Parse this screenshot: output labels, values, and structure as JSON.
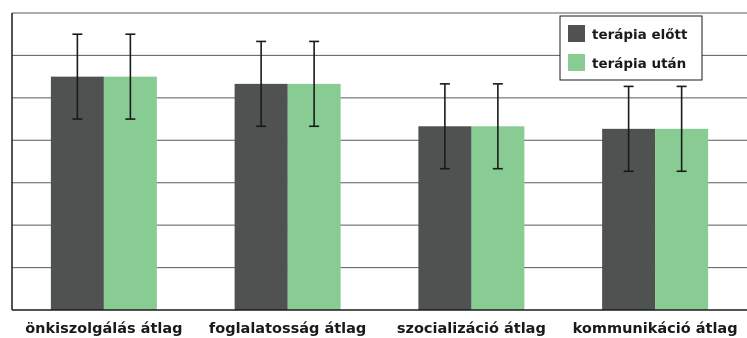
{
  "chart_data": {
    "type": "bar",
    "categories": [
      "önkiszolgálás átlag",
      "foglalatosság átlag",
      "szocializáció átlag",
      "kommunikáció átlag"
    ],
    "series": [
      {
        "name": "terápia előtt",
        "values": [
          5.5,
          5.33,
          4.33,
          4.27
        ],
        "error": [
          1.0,
          1.0,
          1.0,
          1.0
        ],
        "color": "#4f5250"
      },
      {
        "name": "terápia után",
        "values": [
          5.5,
          5.33,
          4.33,
          4.27
        ],
        "error": [
          1.0,
          1.0,
          1.0,
          1.0
        ],
        "color": "#88cc94"
      }
    ],
    "ylim": [
      0,
      7
    ],
    "grid": true,
    "legend": "top-right",
    "title": "",
    "xlabel": "",
    "ylabel": ""
  }
}
